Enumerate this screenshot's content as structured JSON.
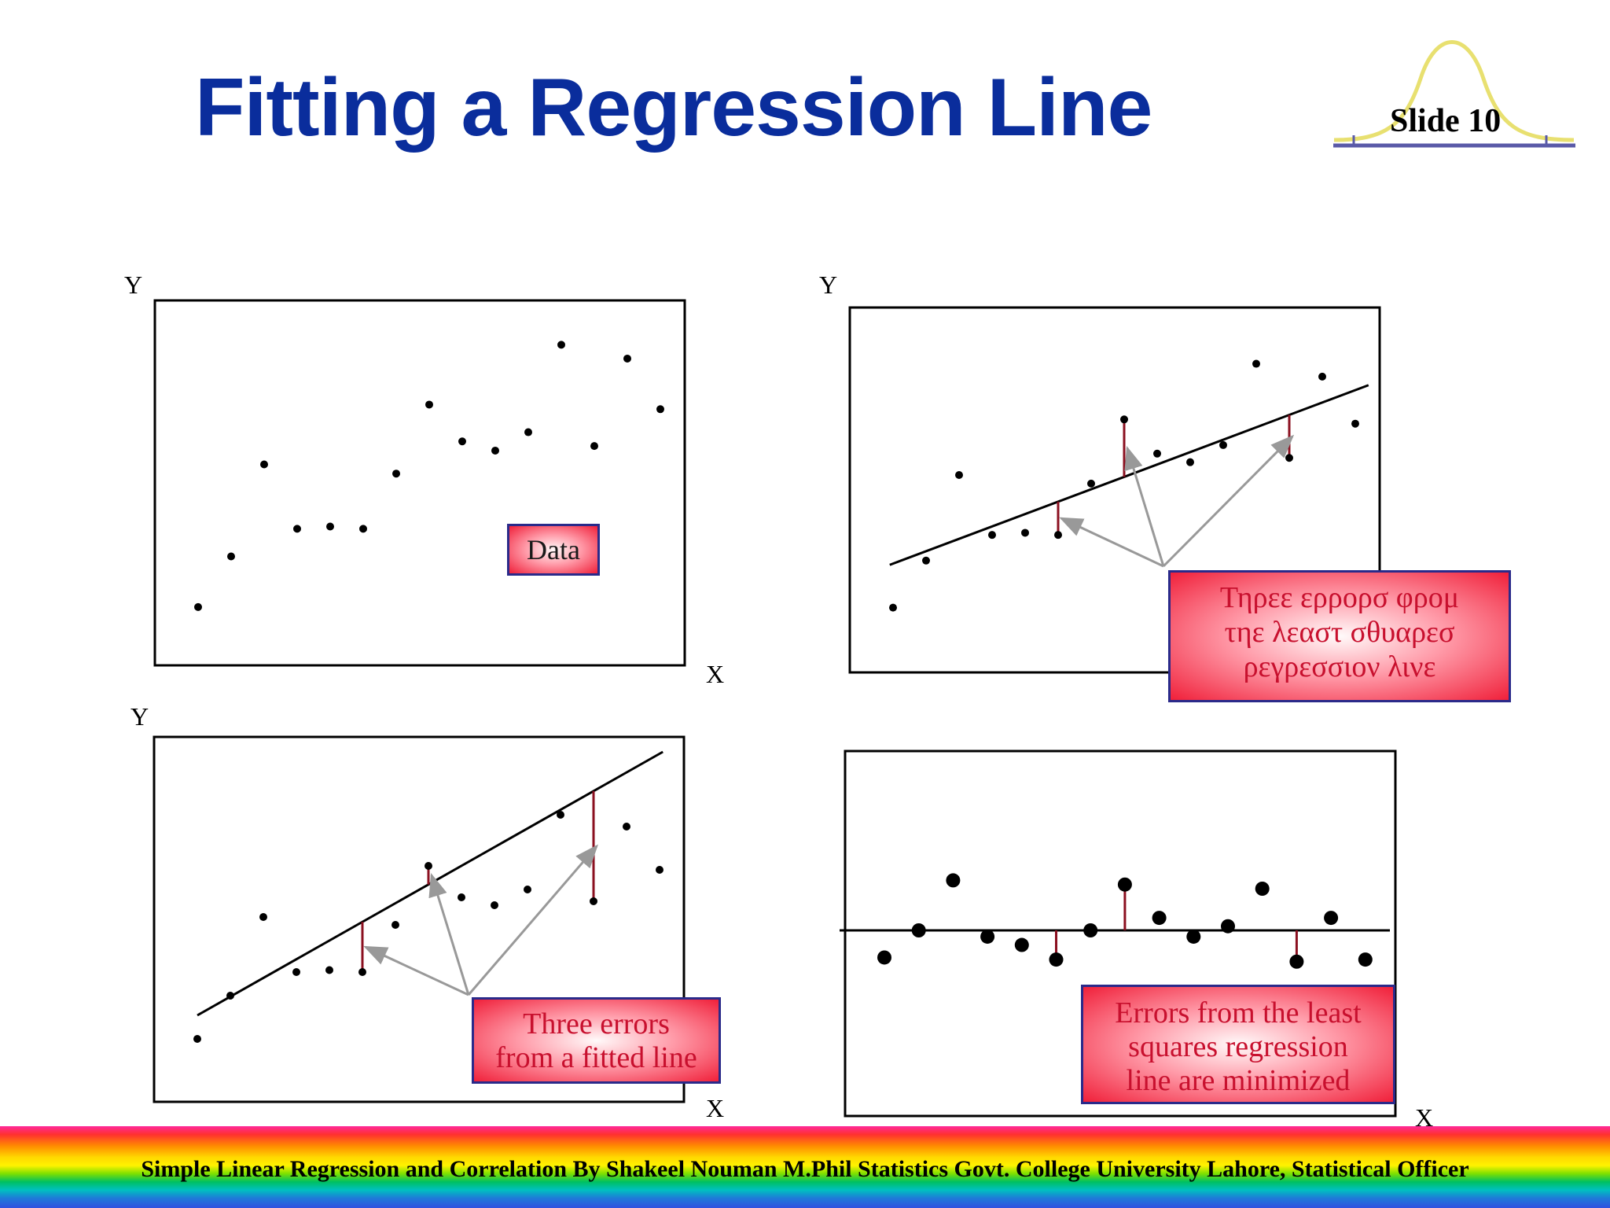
{
  "slide": {
    "title": "Fitting a Regression Line",
    "number_label": "Slide 10"
  },
  "axes": {
    "y_label": "Y",
    "x_label": "X"
  },
  "callouts": {
    "data": "Data",
    "greek_lines": [
      "Τηρεε ερρορσ φρομ",
      "τηε λεαστ σθυαρεσ",
      "ρεγρεσσιον λινε"
    ],
    "three_errors_lines": [
      "Three errors",
      "from a fitted line"
    ],
    "minimized_lines": [
      "Errors from the least",
      "squares regression",
      "line are minimized"
    ]
  },
  "footer": {
    "text": "Simple Linear Regression and Correlation  By Shakeel Nouman M.Phil Statistics Govt. College University Lahore, Statistical Officer"
  },
  "colors": {
    "title": "#0a2d9c",
    "error_segment": "#8b1020",
    "arrow": "#999999",
    "logo_curve": "#e8e070",
    "logo_axis": "#5a5aa8"
  },
  "chart_data": [
    {
      "type": "scatter",
      "panel": "top-left",
      "title": "",
      "xlabel": "X",
      "ylabel": "Y",
      "points": [
        {
          "x": 1,
          "y": 1.9
        },
        {
          "x": 2,
          "y": 3.0
        },
        {
          "x": 3,
          "y": 5.0
        },
        {
          "x": 4,
          "y": 3.6
        },
        {
          "x": 5,
          "y": 3.65
        },
        {
          "x": 6,
          "y": 3.6
        },
        {
          "x": 7,
          "y": 4.8
        },
        {
          "x": 8,
          "y": 6.3
        },
        {
          "x": 9,
          "y": 5.5
        },
        {
          "x": 10,
          "y": 5.3
        },
        {
          "x": 11,
          "y": 5.7
        },
        {
          "x": 12,
          "y": 7.6
        },
        {
          "x": 13,
          "y": 5.4
        },
        {
          "x": 14,
          "y": 7.3
        },
        {
          "x": 15,
          "y": 6.2
        }
      ],
      "annotation": "Data"
    },
    {
      "type": "scatter",
      "panel": "top-right",
      "xlabel": "X",
      "ylabel": "Y",
      "points": [
        {
          "x": 1,
          "y": 1.9
        },
        {
          "x": 2,
          "y": 3.0
        },
        {
          "x": 3,
          "y": 5.0
        },
        {
          "x": 4,
          "y": 3.6
        },
        {
          "x": 5,
          "y": 3.65
        },
        {
          "x": 6,
          "y": 3.6
        },
        {
          "x": 7,
          "y": 4.8
        },
        {
          "x": 8,
          "y": 6.3
        },
        {
          "x": 9,
          "y": 5.5
        },
        {
          "x": 10,
          "y": 5.3
        },
        {
          "x": 11,
          "y": 5.7
        },
        {
          "x": 12,
          "y": 7.6
        },
        {
          "x": 13,
          "y": 5.4
        },
        {
          "x": 14,
          "y": 7.3
        },
        {
          "x": 15,
          "y": 6.2
        }
      ],
      "line": {
        "x1": 0.9,
        "y1": 2.9,
        "x2": 15.4,
        "y2": 7.1
      },
      "error_points": [
        6,
        8,
        13
      ],
      "annotation": "Τηρεε ερρορσ φρομ τηε λεαστ σθυαρεσ ρεγρεσσιον λινε"
    },
    {
      "type": "scatter",
      "panel": "bottom-left",
      "ylabel": "Y",
      "xlabel": "X",
      "points": [
        {
          "x": 1,
          "y": 1.9
        },
        {
          "x": 2,
          "y": 3.0
        },
        {
          "x": 3,
          "y": 5.0
        },
        {
          "x": 4,
          "y": 3.6
        },
        {
          "x": 5,
          "y": 3.65
        },
        {
          "x": 6,
          "y": 3.6
        },
        {
          "x": 7,
          "y": 4.8
        },
        {
          "x": 8,
          "y": 6.3
        },
        {
          "x": 9,
          "y": 5.5
        },
        {
          "x": 10,
          "y": 5.3
        },
        {
          "x": 11,
          "y": 5.7
        },
        {
          "x": 12,
          "y": 7.6
        },
        {
          "x": 13,
          "y": 5.4
        },
        {
          "x": 14,
          "y": 7.3
        },
        {
          "x": 15,
          "y": 6.2
        }
      ],
      "line": {
        "x1": 1.0,
        "y1": 2.5,
        "x2": 15.1,
        "y2": 9.2
      },
      "error_points": [
        6,
        8,
        13
      ],
      "annotation": "Three errors from a fitted line"
    },
    {
      "type": "scatter",
      "panel": "bottom-right",
      "xlabel": "X",
      "residuals": [
        -0.65,
        0,
        1.2,
        -0.15,
        -0.35,
        -0.7,
        0,
        1.1,
        0.3,
        -0.15,
        0.1,
        1.0,
        -0.75,
        0.3,
        -0.7
      ],
      "error_points": [
        6,
        8,
        13
      ],
      "annotation": "Errors from the least squares regression line are minimized"
    }
  ]
}
